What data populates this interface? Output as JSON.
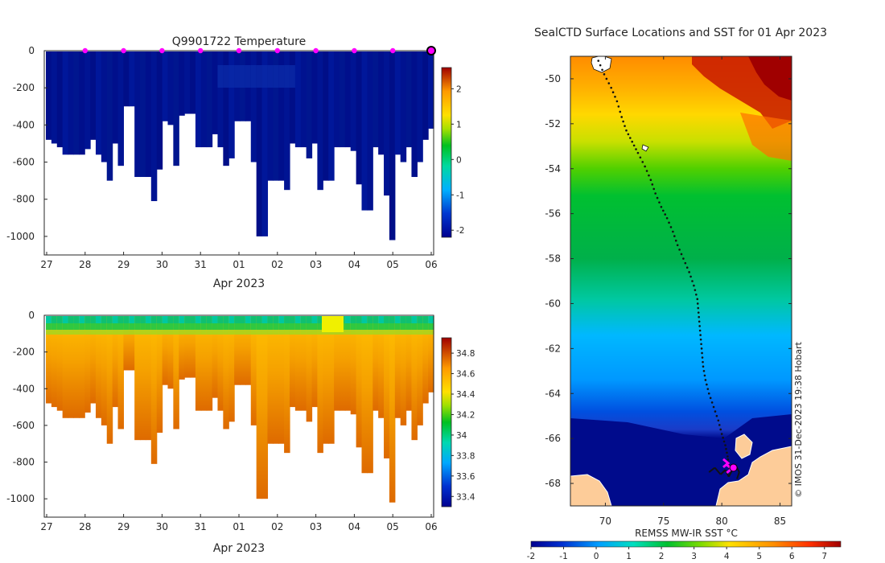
{
  "figure": {
    "colors": {
      "deep_blue": "#000f8c",
      "axis": "#262626",
      "land": "#fdcc99",
      "track": "#111111",
      "marker": "#ff00ff"
    }
  },
  "chart_data": [
    {
      "type": "heatmap",
      "title": "Q9901722  Temperature",
      "xlabel": "Apr 2023",
      "ylabel": "",
      "x_tick_labels": [
        "27",
        "28",
        "29",
        "30",
        "31",
        "01",
        "02",
        "03",
        "04",
        "05",
        "06"
      ],
      "y_tick_labels": [
        "0",
        "-200",
        "-400",
        "-600",
        "-800",
        "-1000"
      ],
      "ylim": [
        -1100,
        0
      ],
      "colorbar": {
        "ticks": [
          "-2",
          "-1",
          "0",
          "1",
          "2"
        ],
        "range": [
          -2.2,
          2.6
        ]
      },
      "profile_max_depths": [
        480,
        500,
        520,
        560,
        560,
        560,
        560,
        530,
        480,
        560,
        600,
        700,
        500,
        620,
        300,
        300,
        680,
        680,
        680,
        810,
        640,
        380,
        400,
        620,
        350,
        340,
        340,
        520,
        520,
        520,
        450,
        520,
        620,
        580,
        380,
        380,
        380,
        600,
        1000,
        1000,
        700,
        700,
        700,
        750,
        500,
        520,
        520,
        580,
        500,
        750,
        700,
        700,
        520,
        520,
        520,
        540,
        720,
        860,
        860,
        520,
        560,
        780,
        1020,
        560,
        600,
        520,
        680,
        600,
        480,
        420
      ],
      "markers_day_offsets": [
        1,
        2,
        3,
        4,
        5,
        6,
        7,
        8,
        9
      ],
      "markers_labels": [
        "28",
        "29",
        "30",
        "31",
        "01",
        "02",
        "03",
        "04",
        "05"
      ]
    },
    {
      "type": "heatmap",
      "title": "",
      "xlabel": "Apr 2023",
      "ylabel": "",
      "x_tick_labels": [
        "27",
        "28",
        "29",
        "30",
        "31",
        "01",
        "02",
        "03",
        "04",
        "05",
        "06"
      ],
      "y_tick_labels": [
        "0",
        "-200",
        "-400",
        "-600",
        "-800",
        "-1000"
      ],
      "ylim": [
        -1100,
        0
      ],
      "colorbar": {
        "ticks": [
          "33.4",
          "33.6",
          "33.8",
          "34",
          "34.2",
          "34.4",
          "34.6",
          "34.8"
        ],
        "range": [
          33.3,
          34.95
        ]
      }
    },
    {
      "type": "heatmap",
      "title": "SealCTD Surface Locations and SST for 01 Apr 2023",
      "x_tick_labels": [
        "70",
        "75",
        "80",
        "85"
      ],
      "x_tick_values": [
        70,
        75,
        80,
        85
      ],
      "y_tick_labels": [
        "-50",
        "-52",
        "-54",
        "-56",
        "-58",
        "-60",
        "-62",
        "-64",
        "-66",
        "-68"
      ],
      "y_tick_values": [
        -50,
        -52,
        -54,
        -56,
        -58,
        -60,
        -62,
        -64,
        -66,
        -68
      ],
      "xlim": [
        67,
        86
      ],
      "ylim": [
        -69,
        -49
      ],
      "colorbar_label": "REMSS MW-IR SST °C",
      "colorbar_ticks": [
        "-2",
        "-1",
        "0",
        "1",
        "2",
        "3",
        "4",
        "5",
        "6",
        "7"
      ],
      "colorbar_range": [
        -2,
        7.5
      ],
      "credit": "© IMOS 31-Dec-2023 19:38 Hobart",
      "track": [
        [
          69.4,
          -49.2
        ],
        [
          69.9,
          -49.8
        ],
        [
          70.5,
          -50.4
        ],
        [
          71,
          -51
        ],
        [
          71.4,
          -51.7
        ],
        [
          71.8,
          -52.3
        ],
        [
          72.3,
          -52.8
        ],
        [
          72.8,
          -53.3
        ],
        [
          73.4,
          -53.9
        ],
        [
          73.9,
          -54.5
        ],
        [
          74.3,
          -55.1
        ],
        [
          74.8,
          -55.7
        ],
        [
          75.3,
          -56.2
        ],
        [
          75.8,
          -56.8
        ],
        [
          76.2,
          -57.4
        ],
        [
          76.7,
          -58
        ],
        [
          77.2,
          -58.6
        ],
        [
          77.6,
          -59.2
        ],
        [
          77.9,
          -59.8
        ],
        [
          78,
          -60.4
        ],
        [
          78.1,
          -61
        ],
        [
          78.2,
          -61.6
        ],
        [
          78.3,
          -62.2
        ],
        [
          78.4,
          -62.8
        ],
        [
          78.6,
          -63.4
        ],
        [
          78.9,
          -64
        ],
        [
          79.3,
          -64.6
        ],
        [
          79.7,
          -65.2
        ],
        [
          80,
          -65.8
        ],
        [
          80.3,
          -66.3
        ],
        [
          80.5,
          -66.8
        ],
        [
          80.6,
          -67.2
        ],
        [
          80.7,
          -67.5
        ]
      ],
      "track_extra": [
        [
          78.9,
          -67.5
        ],
        [
          79.4,
          -67.3
        ],
        [
          79.9,
          -67.6
        ],
        [
          80.3,
          -67.4
        ],
        [
          80.6,
          -67.7
        ],
        [
          80.9,
          -67.4
        ],
        [
          81.2,
          -67.2
        ],
        [
          81.5,
          -67.5
        ],
        [
          81.3,
          -67.8
        ]
      ],
      "current_position": [
        81.0,
        -67.3
      ],
      "markers": [
        [
          80.4,
          -67.1
        ],
        [
          80.7,
          -67.35
        ]
      ]
    }
  ]
}
